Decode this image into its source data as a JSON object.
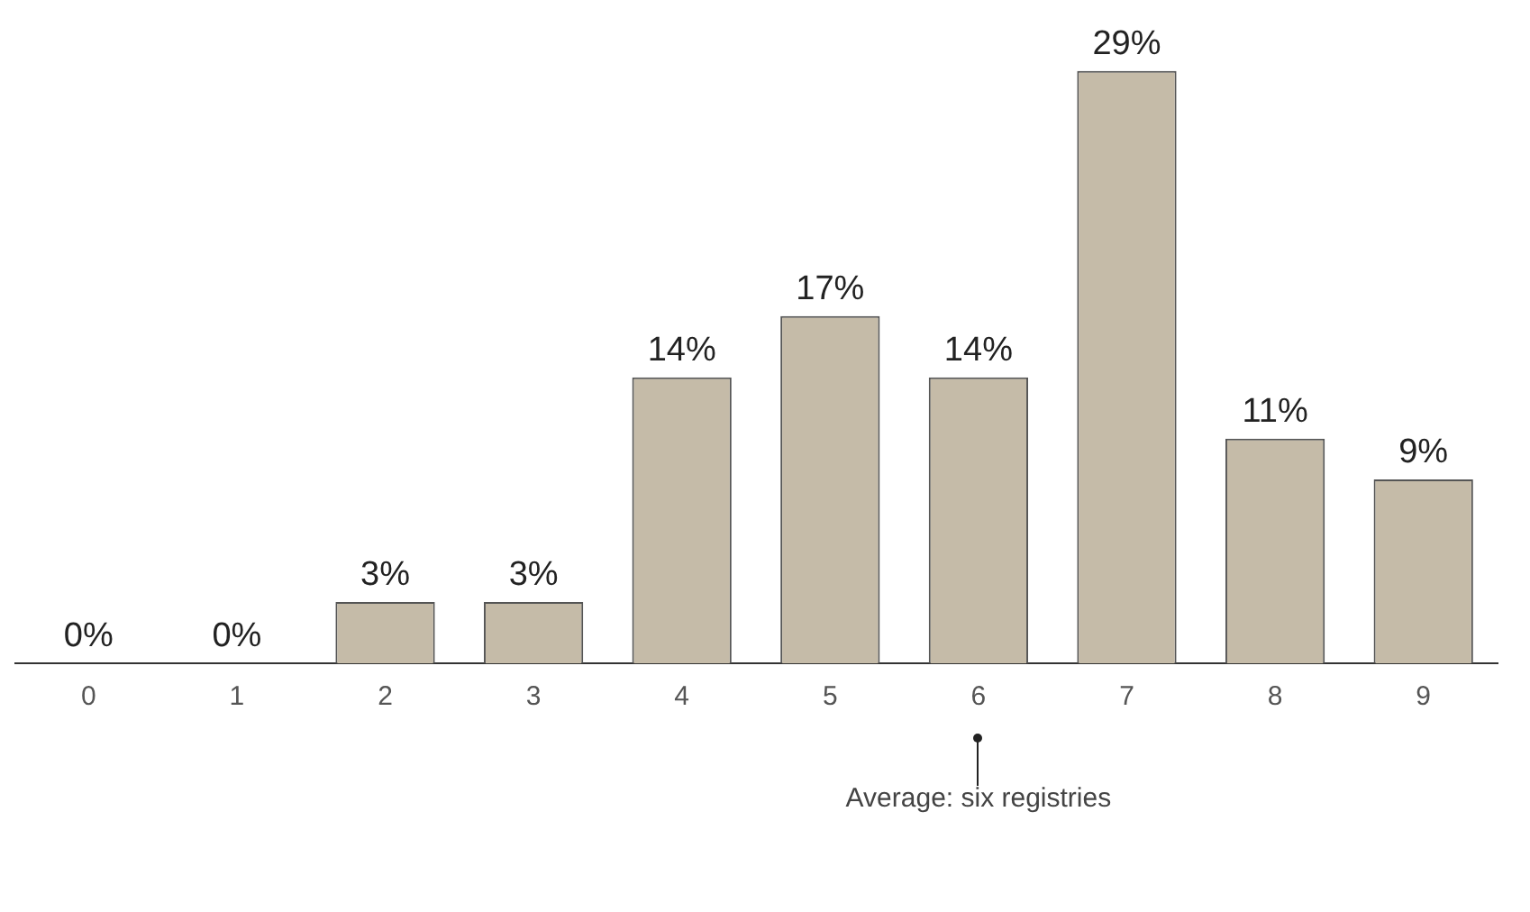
{
  "chart_data": {
    "type": "bar",
    "categories": [
      "0",
      "1",
      "2",
      "3",
      "4",
      "5",
      "6",
      "7",
      "8",
      "9"
    ],
    "values": [
      0,
      0,
      3,
      3,
      14,
      17,
      14,
      29,
      11,
      9
    ],
    "value_labels": [
      "0%",
      "0%",
      "3%",
      "3%",
      "14%",
      "17%",
      "14%",
      "29%",
      "11%",
      "9%"
    ],
    "color": "#c5bba8",
    "grid": false,
    "legend": false,
    "annotations": [
      {
        "text": "Average: six registries",
        "x": "6"
      }
    ]
  }
}
